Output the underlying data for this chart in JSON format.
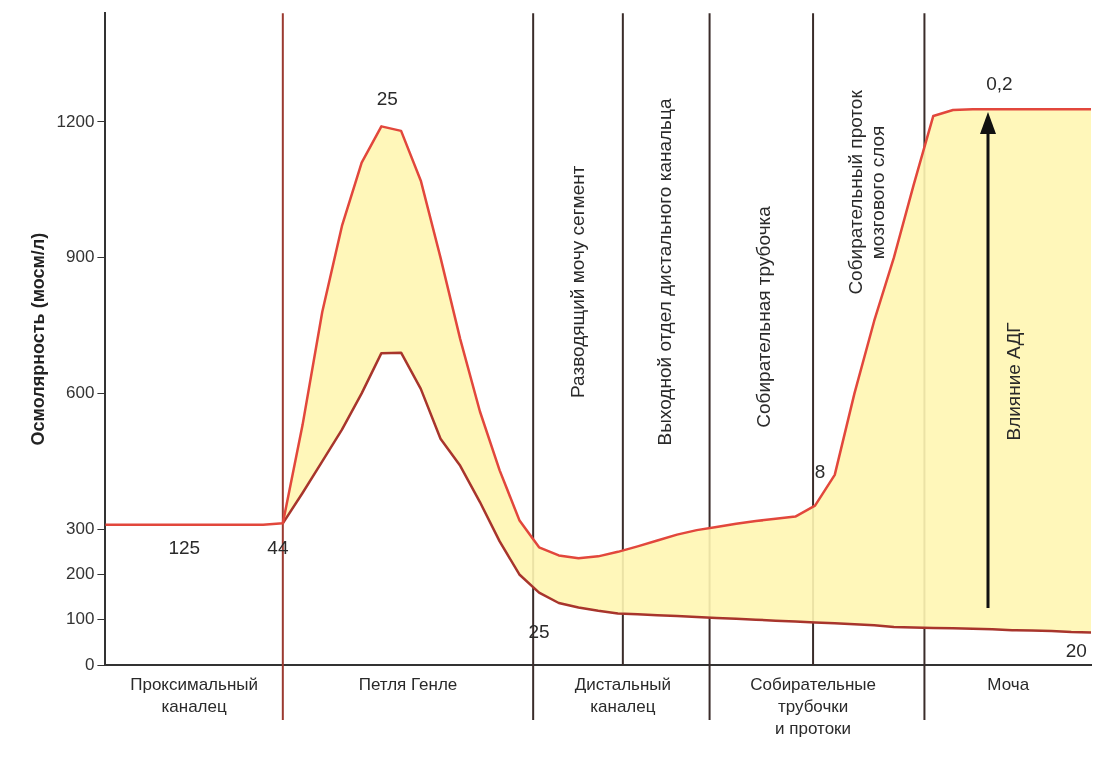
{
  "chart_data": {
    "type": "line",
    "ylabel": "Осмолярность (мосм/л)",
    "categories": [
      null,
      null,
      null,
      null,
      null,
      null,
      null,
      null,
      null,
      null,
      null,
      null,
      null,
      null,
      null,
      null,
      null,
      null,
      null,
      null,
      null,
      null,
      null,
      null,
      null,
      null,
      null,
      null,
      null,
      null,
      null,
      null,
      null,
      null,
      null,
      null,
      null,
      null,
      null,
      null,
      null,
      null,
      null,
      null,
      null,
      null,
      null,
      null,
      null,
      null,
      null
    ],
    "ylim": [
      0,
      1440
    ],
    "yticks": [
      0,
      100,
      200,
      300,
      600,
      900,
      1200
    ],
    "tick_labels": "y",
    "grid": false,
    "legend": false,
    "marker": "none",
    "series": [
      {
        "color": "#e2473c",
        "values": [
          310,
          310,
          310,
          310,
          310,
          310,
          310,
          310,
          310,
          313,
          530,
          780,
          970,
          1110,
          1190,
          1180,
          1070,
          900,
          720,
          560,
          430,
          320,
          260,
          242,
          236,
          240,
          250,
          262,
          275,
          288,
          298,
          305,
          312,
          318,
          323,
          328,
          352,
          420,
          600,
          760,
          900,
          1060,
          1213,
          1226,
          1228,
          1228,
          1228,
          1228,
          1228,
          1228,
          1228
        ]
      },
      {
        "color": "#a8352c",
        "values": [
          null,
          null,
          null,
          null,
          null,
          null,
          null,
          null,
          null,
          313,
          380,
          450,
          520,
          600,
          689,
          690,
          610,
          500,
          440,
          360,
          273,
          200,
          160,
          137,
          127,
          120,
          114,
          112,
          110,
          108,
          106,
          104,
          102,
          100,
          98,
          96,
          94,
          92,
          90,
          88,
          84,
          83,
          82,
          81,
          80,
          79,
          77,
          76,
          75,
          73,
          72
        ],
        "lower": [
          null,
          null,
          null,
          null,
          null,
          null,
          null,
          null,
          null,
          313,
          380,
          450,
          520,
          600,
          689,
          690,
          610,
          500,
          440,
          360,
          273,
          200,
          160,
          137,
          127,
          120,
          114,
          112,
          110,
          108,
          106,
          104,
          102,
          100,
          98,
          96,
          94,
          92,
          90,
          88,
          84,
          83,
          82,
          81,
          80,
          79,
          77,
          76,
          75,
          73,
          72
        ],
        "upper": [
          null,
          null,
          null,
          null,
          null,
          null,
          null,
          null,
          null,
          313,
          530,
          780,
          970,
          1110,
          1190,
          1180,
          1070,
          900,
          720,
          560,
          430,
          320,
          260,
          242,
          236,
          240,
          250,
          262,
          275,
          288,
          298,
          305,
          312,
          318,
          323,
          328,
          352,
          420,
          600,
          760,
          900,
          1060,
          1213,
          1226,
          1228,
          1228,
          1228,
          1228,
          1228,
          1228,
          1228
        ]
      }
    ],
    "annotations": [
      "Разводящий мочу сегмент",
      "Выходной отдел дистального канальца",
      "Собирательная трубочка",
      "Собирательный проток\nмозгового слоя",
      "Влияние АДГ",
      "125",
      "44",
      "25",
      "25",
      "8",
      "0,2",
      "20",
      "Проксимальный\nканалец",
      "Петля Генле",
      "Дистальный\nканалец",
      "Собирательные\nтрубочки\nи протоки",
      "Моча"
    ]
  }
}
